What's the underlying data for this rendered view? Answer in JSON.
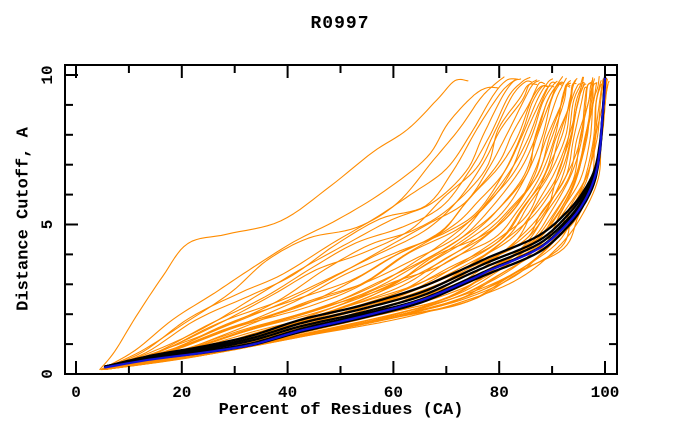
{
  "chart_data": {
    "type": "line",
    "title": "R0997",
    "xlabel": "Percent of Residues (CA)",
    "ylabel": "Distance Cutoff, A",
    "xlim": [
      0,
      100
    ],
    "ylim": [
      0,
      10
    ],
    "x_major_ticks": [
      0,
      20,
      40,
      60,
      80,
      100
    ],
    "x_minor_ticks": [
      10,
      30,
      50,
      70,
      90
    ],
    "y_major_ticks": [
      0,
      5,
      10
    ],
    "y_minor_ticks": [
      1,
      2,
      3,
      4,
      6,
      7,
      8,
      9
    ],
    "grid": false,
    "legend": false,
    "frame_box": true,
    "colors": {
      "ensemble": "#FF8C00",
      "best_group": "#000000",
      "highlight": "#1212D8",
      "frame": "#000000",
      "background": "#FFFFFF",
      "text": "#000000"
    },
    "series": [
      {
        "name": "ensemble-models",
        "color_key": "ensemble",
        "line_width": 1.1,
        "count": 55,
        "description": "fan of per-model cumulative curves between worst and best envelopes",
        "envelope_worst": [
          [
            4.5,
            0.15
          ],
          [
            7.5,
            0.8
          ],
          [
            11,
            2.0
          ],
          [
            16,
            3.1
          ],
          [
            21.5,
            4.1
          ],
          [
            29,
            4.9
          ],
          [
            38.5,
            5.4
          ],
          [
            48,
            6.1
          ],
          [
            56,
            7.2
          ],
          [
            61.5,
            8.3
          ],
          [
            67,
            9.35
          ],
          [
            70.5,
            9.8
          ],
          [
            73,
            10.0
          ]
        ],
        "envelope_best": [
          [
            5.5,
            0.15
          ],
          [
            23.5,
            0.6
          ],
          [
            42.5,
            1.2
          ],
          [
            61,
            1.85
          ],
          [
            74.5,
            2.45
          ],
          [
            84,
            3.3
          ],
          [
            91.5,
            4.3
          ],
          [
            95,
            5.3
          ],
          [
            98,
            6.5
          ],
          [
            99.3,
            7.8
          ],
          [
            99.9,
            9.0
          ],
          [
            100,
            9.6
          ],
          [
            100,
            10.0
          ]
        ]
      },
      {
        "name": "best-models-group",
        "color_key": "best_group",
        "line_width": 2.3,
        "count": 5,
        "spread": 0.28,
        "points": [
          [
            5.5,
            0.25
          ],
          [
            14,
            0.55
          ],
          [
            23.5,
            0.8
          ],
          [
            33,
            1.1
          ],
          [
            42.5,
            1.6
          ],
          [
            53.5,
            2.05
          ],
          [
            65,
            2.6
          ],
          [
            74.5,
            3.35
          ],
          [
            78,
            3.6
          ],
          [
            87.5,
            4.35
          ],
          [
            93,
            5.2
          ],
          [
            96,
            5.9
          ],
          [
            98,
            6.6
          ],
          [
            99,
            7.5
          ],
          [
            99.5,
            8.5
          ],
          [
            99.8,
            9.3
          ],
          [
            100,
            9.9
          ]
        ]
      },
      {
        "name": "highlight-model",
        "color_key": "highlight",
        "line_width": 2.2,
        "points": [
          [
            5.5,
            0.22
          ],
          [
            14,
            0.48
          ],
          [
            23.5,
            0.7
          ],
          [
            33,
            0.97
          ],
          [
            42.5,
            1.45
          ],
          [
            53.5,
            1.9
          ],
          [
            65,
            2.45
          ],
          [
            74.5,
            3.15
          ],
          [
            78,
            3.45
          ],
          [
            87.5,
            4.2
          ],
          [
            93,
            5.05
          ],
          [
            96,
            5.75
          ],
          [
            98,
            6.55
          ],
          [
            99,
            7.45
          ],
          [
            99.5,
            8.6
          ],
          [
            99.9,
            9.4
          ],
          [
            100,
            9.95
          ]
        ]
      }
    ]
  }
}
